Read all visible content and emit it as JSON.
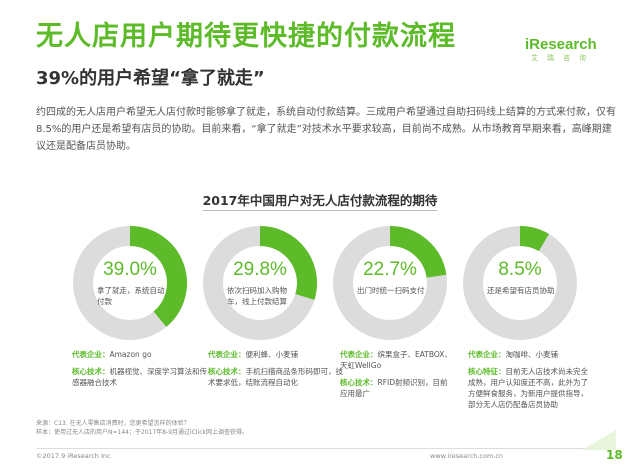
{
  "header": {
    "title": "无人店用户期待更快捷的付款流程",
    "subtitle": "39%的用户希望“拿了就走”",
    "brand": "iResearch",
    "brand_sub": "艾瑞咨询"
  },
  "intro": "约四成的无人店用户希望无人店付款时能够拿了就走，系统自动付款结算。三成用户希望通过自助扫码线上结算的方式来付款，仅有8.5%的用户还是希望有店员的协助。目前来看，“拿了就走”对技术水平要求较高，目前尚不成熟。从市场教育早期来看，高峰期建议还是配备店员协助。",
  "chart_data": {
    "type": "pie",
    "title": "2017年中国用户对无人店付款流程的期待",
    "unit": "%",
    "items": [
      {
        "value": 39.0,
        "label": "39.0%",
        "desc": "拿了就走，系统自动付款",
        "rep_key": "代表企业：",
        "rep": "Amazon go",
        "tech_key": "核心技术：",
        "tech": "机器视觉、深度学习算法和传感器融合技术"
      },
      {
        "value": 29.8,
        "label": "29.8%",
        "desc": "依次扫码加入购物车，线上付款结算",
        "rep_key": "代表企业：",
        "rep": "便利蜂、小麦铺",
        "tech_key": "核心技术：",
        "tech": "手机扫描商品条形码即可，技术要求低，结账流程自动化"
      },
      {
        "value": 22.7,
        "label": "22.7%",
        "desc": "出门时统一扫码支付",
        "rep_key": "代表企业：",
        "rep": "缤果盒子、EATBOX、天虹WellGo",
        "tech_key": "核心技术：",
        "tech": "RFID射频识别，目前应用最广"
      },
      {
        "value": 8.5,
        "label": "8.5%",
        "desc": "还是希望有店员协助",
        "rep_key": "代表企业：",
        "rep": "淘咖啡、小麦铺",
        "tech_key": "核心特征：",
        "tech": "目前无人店技术尚未完全成熟，用户认知度还不高，此外为了方便鲜食服务，为新用户提供指导，部分无人店仍配备店员协助"
      }
    ],
    "colors": {
      "accent": "#5DBB2A",
      "track": "#DCDCDC"
    }
  },
  "footnote": {
    "line1": "来源：C13. 在无人零售店消费时，您更希望怎样的体验？",
    "line2": "样本：使用过无人店的用户N=144；于2017年8-9月通过iClick网上调查获得。"
  },
  "footer": {
    "copyright": "©2017.9 iResearch Inc",
    "website": "www.iresearch.com.cn",
    "page": "18"
  }
}
